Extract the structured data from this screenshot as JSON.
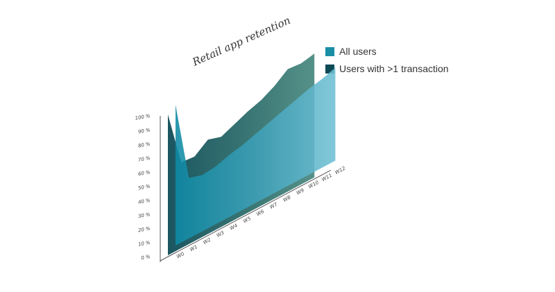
{
  "chart_data": {
    "type": "area",
    "title": "Retail app retention",
    "xlabel": "",
    "ylabel": "",
    "categories": [
      "W0",
      "W1",
      "W2",
      "W3",
      "W4",
      "W5",
      "W6",
      "W7",
      "W8",
      "W9",
      "W10",
      "W11",
      "W12"
    ],
    "y_ticks": [
      "0 %",
      "10 %",
      "20 %",
      "30 %",
      "40 %",
      "50 %",
      "60 %",
      "70 %",
      "80 %",
      "90 %",
      "100 %"
    ],
    "ylim": [
      0,
      100
    ],
    "grid": false,
    "legend_position": "top-right",
    "series": [
      {
        "name": "All users",
        "color": "#1a8ea6",
        "values": [
          100,
          43,
          40,
          41,
          44,
          46,
          49,
          52,
          55,
          58,
          61,
          63,
          66
        ]
      },
      {
        "name": "Users with >1 transaction",
        "color": "#0d4a55",
        "values": [
          100,
          61,
          60,
          67,
          64,
          68,
          72,
          75,
          80,
          87,
          86,
          88,
          null
        ]
      }
    ]
  }
}
